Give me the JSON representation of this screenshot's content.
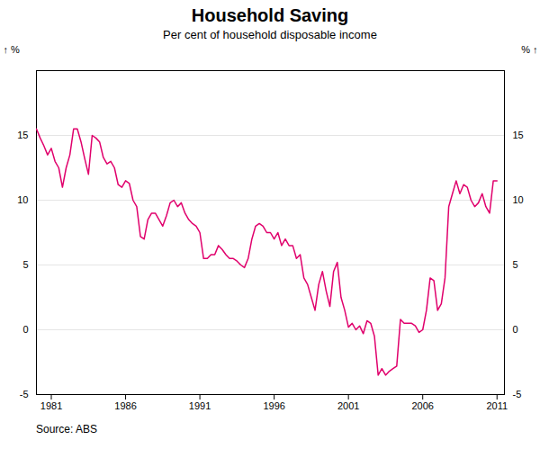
{
  "chart_data": {
    "type": "line",
    "title": "Household Saving",
    "subtitle": "Per cent of household disposable income",
    "source": "Source: ABS",
    "ylabel": "%",
    "y2label": "%",
    "color": "#E0006C",
    "x": [
      1980,
      1980.25,
      1980.5,
      1980.75,
      1981,
      1981.25,
      1981.5,
      1981.75,
      1982,
      1982.25,
      1982.5,
      1982.75,
      1983,
      1983.25,
      1983.5,
      1983.75,
      1984,
      1984.25,
      1984.5,
      1984.75,
      1985,
      1985.25,
      1985.5,
      1985.75,
      1986,
      1986.25,
      1986.5,
      1986.75,
      1987,
      1987.25,
      1987.5,
      1987.75,
      1988,
      1988.25,
      1988.5,
      1988.75,
      1989,
      1989.25,
      1989.5,
      1989.75,
      1990,
      1990.25,
      1990.5,
      1990.75,
      1991,
      1991.25,
      1991.5,
      1991.75,
      1992,
      1992.25,
      1992.5,
      1992.75,
      1993,
      1993.25,
      1993.5,
      1993.75,
      1994,
      1994.25,
      1994.5,
      1994.75,
      1995,
      1995.25,
      1995.5,
      1995.75,
      1996,
      1996.25,
      1996.5,
      1996.75,
      1997,
      1997.25,
      1997.5,
      1997.75,
      1998,
      1998.25,
      1998.5,
      1998.75,
      1999,
      1999.25,
      1999.5,
      1999.75,
      2000,
      2000.25,
      2000.5,
      2000.75,
      2001,
      2001.25,
      2001.5,
      2001.75,
      2002,
      2002.25,
      2002.5,
      2002.75,
      2003,
      2003.25,
      2003.5,
      2003.75,
      2004,
      2004.25,
      2004.5,
      2004.75,
      2005,
      2005.25,
      2005.5,
      2005.75,
      2006,
      2006.25,
      2006.5,
      2006.75,
      2007,
      2007.25,
      2007.5,
      2007.75,
      2008,
      2008.25,
      2008.5,
      2008.75,
      2009,
      2009.25,
      2009.5,
      2009.75,
      2010,
      2010.25,
      2010.5,
      2010.75,
      2011
    ],
    "values": [
      15.5,
      14.8,
      14.2,
      13.5,
      14.0,
      13.0,
      12.5,
      11.0,
      12.5,
      13.5,
      15.5,
      15.5,
      14.5,
      13.2,
      12.0,
      15.0,
      14.8,
      14.5,
      13.3,
      12.8,
      13.0,
      12.5,
      11.2,
      11.0,
      11.5,
      11.3,
      10.0,
      9.5,
      7.2,
      7.0,
      8.5,
      9.0,
      9.0,
      8.5,
      8.0,
      8.8,
      9.8,
      10.0,
      9.5,
      9.8,
      9.0,
      8.5,
      8.2,
      8.0,
      7.5,
      5.5,
      5.5,
      5.8,
      5.8,
      6.5,
      6.2,
      5.8,
      5.5,
      5.5,
      5.3,
      5.0,
      4.8,
      5.5,
      7.0,
      8.0,
      8.2,
      8.0,
      7.5,
      7.5,
      7.0,
      7.5,
      6.5,
      7.0,
      6.5,
      6.5,
      5.5,
      5.8,
      4.0,
      3.5,
      2.5,
      1.5,
      3.5,
      4.5,
      3.0,
      1.8,
      4.5,
      5.2,
      2.5,
      1.5,
      0.2,
      0.5,
      0.0,
      0.3,
      -0.3,
      0.7,
      0.5,
      -0.5,
      -3.5,
      -3.0,
      -3.5,
      -3.2,
      -3.0,
      -2.8,
      0.8,
      0.5,
      0.5,
      0.5,
      0.3,
      -0.2,
      0.0,
      1.5,
      4.0,
      3.8,
      1.5,
      2.0,
      4.0,
      9.5,
      10.5,
      11.5,
      10.5,
      11.2,
      11.0,
      10.0,
      9.5,
      9.8,
      10.5,
      9.5,
      9.0,
      11.5,
      11.5
    ],
    "xlim": [
      1980.0,
      2011.5
    ],
    "xticks": [
      1981,
      1986,
      1991,
      1996,
      2001,
      2006,
      2011
    ],
    "ylim": [
      -5,
      20
    ],
    "yticks": [
      -5,
      0,
      5,
      10,
      15
    ],
    "grid": true
  }
}
